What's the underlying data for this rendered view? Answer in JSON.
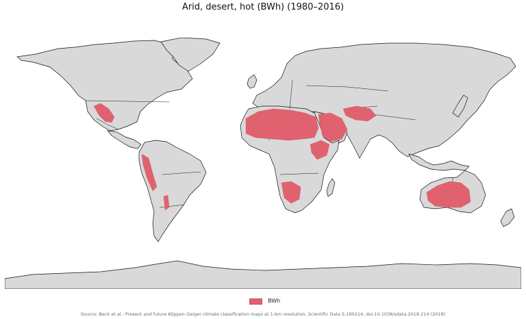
{
  "map": {
    "title": "Arid, desert, hot (BWh) (1980–2016)",
    "legend": {
      "label": "BWh",
      "color": "#e1626f"
    },
    "land_color": "#d9d9d9",
    "border_color": "#111111",
    "source": "Source: Beck et al.: Present and future Köppen-Geiger climate classification maps at 1-km resolution, Scientific Data 5:180214, doi:10.1038/sdata.2018.214 (2018)"
  }
}
